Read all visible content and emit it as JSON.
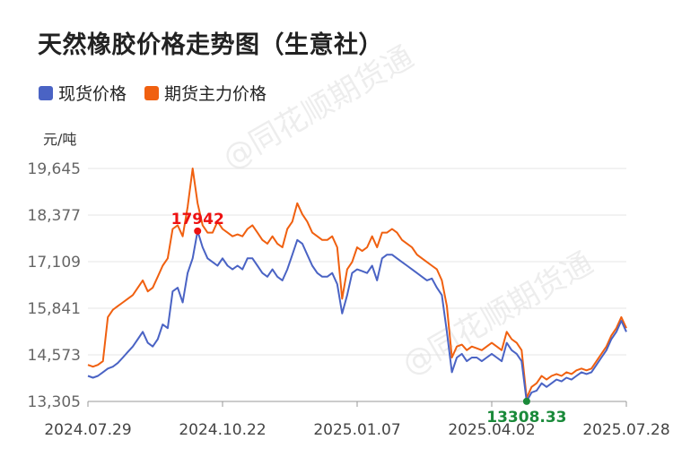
{
  "title": "天然橡胶价格走势图（生意社）",
  "watermark": "@同花顺期货通",
  "colors": {
    "spot": "#4a63c4",
    "futures": "#f06010",
    "grid": "#e4e4e4",
    "max_label": "#ee1111",
    "min_label": "#1a8a3a"
  },
  "chart_data": {
    "type": "line",
    "title": "天然橡胶价格走势图（生意社）",
    "ylabel": "元/吨",
    "xlabel": "",
    "ylim": [
      13305,
      19645
    ],
    "y_ticks": [
      "13,305",
      "14,573",
      "15,841",
      "17,109",
      "18,377",
      "19,645"
    ],
    "y_tick_values": [
      13305,
      14573,
      15841,
      17109,
      18377,
      19645
    ],
    "x_tick_labels": [
      "2024.07.29",
      "2024.10.22",
      "2025.01.07",
      "2025.04.02",
      "2025.07.28"
    ],
    "grid": "horizontal",
    "legend_position": "top-left",
    "series": [
      {
        "name": "现货价格",
        "color": "#4a63c4",
        "values": [
          14000,
          13950,
          14000,
          14100,
          14200,
          14250,
          14350,
          14500,
          14650,
          14800,
          15000,
          15200,
          14900,
          14800,
          15000,
          15400,
          15300,
          16300,
          16400,
          16000,
          16800,
          17200,
          17942,
          17500,
          17200,
          17100,
          17000,
          17200,
          17000,
          16900,
          17000,
          16900,
          17200,
          17200,
          17000,
          16800,
          16700,
          16900,
          16700,
          16600,
          16900,
          17300,
          17700,
          17600,
          17300,
          17000,
          16800,
          16700,
          16700,
          16800,
          16500,
          15700,
          16200,
          16800,
          16900,
          16850,
          16800,
          17000,
          16600,
          17200,
          17300,
          17300,
          17200,
          17100,
          17000,
          16900,
          16800,
          16700,
          16600,
          16650,
          16400,
          16200,
          15200,
          14100,
          14500,
          14600,
          14400,
          14500,
          14500,
          14400,
          14500,
          14600,
          14500,
          14400,
          14900,
          14700,
          14600,
          14400,
          13308,
          13550,
          13600,
          13800,
          13700,
          13800,
          13900,
          13850,
          13950,
          13900,
          14000,
          14100,
          14050,
          14100,
          14300,
          14500,
          14700,
          15000,
          15200,
          15500,
          15200
        ]
      },
      {
        "name": "期货主力价格",
        "color": "#f06010",
        "values": [
          14300,
          14250,
          14300,
          14400,
          15600,
          15800,
          15900,
          16000,
          16100,
          16200,
          16400,
          16600,
          16300,
          16400,
          16700,
          17000,
          17200,
          18000,
          18100,
          17800,
          18600,
          19645,
          18700,
          18100,
          17900,
          17900,
          18200,
          18000,
          17900,
          17800,
          17850,
          17800,
          18000,
          18100,
          17900,
          17700,
          17600,
          17800,
          17600,
          17500,
          18000,
          18200,
          18700,
          18400,
          18200,
          17900,
          17800,
          17700,
          17700,
          17800,
          17500,
          16100,
          16900,
          17100,
          17500,
          17400,
          17500,
          17800,
          17500,
          17900,
          17900,
          18000,
          17900,
          17700,
          17600,
          17500,
          17300,
          17200,
          17100,
          17000,
          16900,
          16600,
          15900,
          14500,
          14800,
          14850,
          14700,
          14800,
          14750,
          14700,
          14800,
          14900,
          14800,
          14700,
          15200,
          15000,
          14900,
          14700,
          13400,
          13700,
          13800,
          14000,
          13900,
          14000,
          14050,
          14000,
          14100,
          14050,
          14150,
          14200,
          14150,
          14200,
          14400,
          14600,
          14800,
          15100,
          15300,
          15600,
          15300
        ]
      }
    ],
    "annotations": [
      {
        "text": "17942",
        "series": "现货价格",
        "index": 22,
        "type": "max"
      },
      {
        "text": "13308.33",
        "series": "现货价格",
        "index": 88,
        "type": "min"
      }
    ]
  }
}
